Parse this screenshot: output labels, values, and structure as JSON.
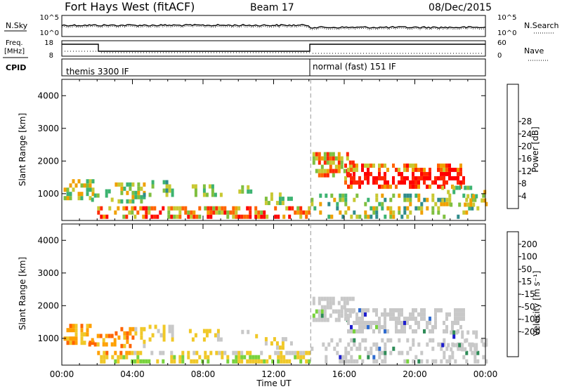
{
  "header": {
    "station": "Fort Hays West (fitACF)",
    "beam": "Beam 17",
    "date": "08/Dec/2015"
  },
  "noise_panel": {
    "left_label": "N.Sky",
    "right_label": "N.Search",
    "tick_top": "10^5",
    "tick_bottom": "10^0"
  },
  "freq_panel": {
    "left_label_line1": "Freq.",
    "left_label_line2": "[MHz]",
    "left_tick_top": "18",
    "left_tick_bottom": "8",
    "right_label": "Nave",
    "right_tick_top": "60",
    "right_tick_bottom": "0"
  },
  "cpid_panel": {
    "label": "CPID",
    "mode1": "themis 3300 IF",
    "mode2": "normal (fast) 151 IF"
  },
  "chart_data": [
    {
      "type": "heatmap",
      "name": "power",
      "ylabel": "Slant Range [km]",
      "yticks": [
        1000,
        2000,
        3000,
        4000
      ],
      "ylim": [
        180,
        4500
      ],
      "xlim": [
        0,
        24
      ],
      "colorbar": {
        "label": "Power [dB]",
        "ticks": [
          "4",
          "8",
          "12",
          "16",
          "20",
          "24",
          "28"
        ],
        "colors": [
          "#0000ff",
          "#1e5aa8",
          "#2e8b8b",
          "#3cb371",
          "#7fbf3f",
          "#c8c832",
          "#f0a000",
          "#ff6400",
          "#ff2800",
          "#ff0000"
        ]
      }
    },
    {
      "type": "heatmap",
      "name": "velocity",
      "ylabel": "Slant Range [km]",
      "yticks": [
        1000,
        2000,
        3000,
        4000
      ],
      "ylim": [
        180,
        4500
      ],
      "xlim": [
        0,
        24
      ],
      "colorbar": {
        "label": "Velocity [m s⁻¹]",
        "ticks": [
          "200",
          "100",
          "50",
          "15",
          "-15",
          "-50",
          "-100",
          "-200"
        ],
        "colors": [
          "#1e1ecd",
          "#2e6bd0",
          "#2e8b57",
          "#78d23c",
          "#c8c8c8",
          "#c8c8c8",
          "#f0c828",
          "#ffa000",
          "#ff6400",
          "#ff0000"
        ]
      }
    }
  ],
  "xaxis": {
    "label": "Time UT",
    "ticks": [
      "00:00",
      "04:00",
      "08:00",
      "12:00",
      "16:00",
      "20:00",
      "00:00"
    ]
  },
  "mode_change_hour": 14.1
}
